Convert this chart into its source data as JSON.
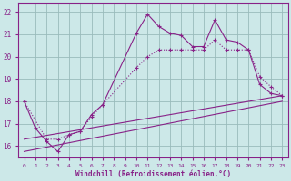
{
  "xlabel": "Windchill (Refroidissement éolien,°C)",
  "bg_color": "#cce8e8",
  "grid_color": "#99bbbb",
  "line_color": "#882288",
  "xlim": [
    -0.5,
    23.5
  ],
  "ylim": [
    15.5,
    22.4
  ],
  "yticks": [
    16,
    17,
    18,
    19,
    20,
    21,
    22
  ],
  "xticks": [
    0,
    1,
    2,
    3,
    4,
    5,
    6,
    7,
    8,
    9,
    10,
    11,
    12,
    13,
    14,
    15,
    16,
    17,
    18,
    19,
    20,
    21,
    22,
    23
  ],
  "line1_x": [
    0,
    1,
    2,
    3,
    4,
    5,
    6,
    7,
    10,
    11,
    12,
    13,
    14,
    15,
    16,
    17,
    18,
    19,
    20,
    21,
    22,
    23
  ],
  "line1_y": [
    18.0,
    16.8,
    16.2,
    15.75,
    16.5,
    16.65,
    17.4,
    17.85,
    21.05,
    21.9,
    21.35,
    21.05,
    20.95,
    20.45,
    20.45,
    21.65,
    20.75,
    20.65,
    20.3,
    18.75,
    18.35,
    18.25
  ],
  "line2_x": [
    0,
    2,
    3,
    4,
    5,
    6,
    7,
    10,
    11,
    12,
    13,
    14,
    15,
    16,
    17,
    18,
    19,
    20,
    21,
    22,
    23
  ],
  "line2_y": [
    18.0,
    16.3,
    16.3,
    16.5,
    16.65,
    17.3,
    17.85,
    19.5,
    20.0,
    20.3,
    20.3,
    20.3,
    20.3,
    20.3,
    20.75,
    20.3,
    20.3,
    20.3,
    19.1,
    18.65,
    18.25
  ],
  "line3_x": [
    0,
    23
  ],
  "line3_y": [
    16.3,
    18.25
  ],
  "line4_x": [
    0,
    23
  ],
  "line4_y": [
    15.75,
    18.0
  ]
}
